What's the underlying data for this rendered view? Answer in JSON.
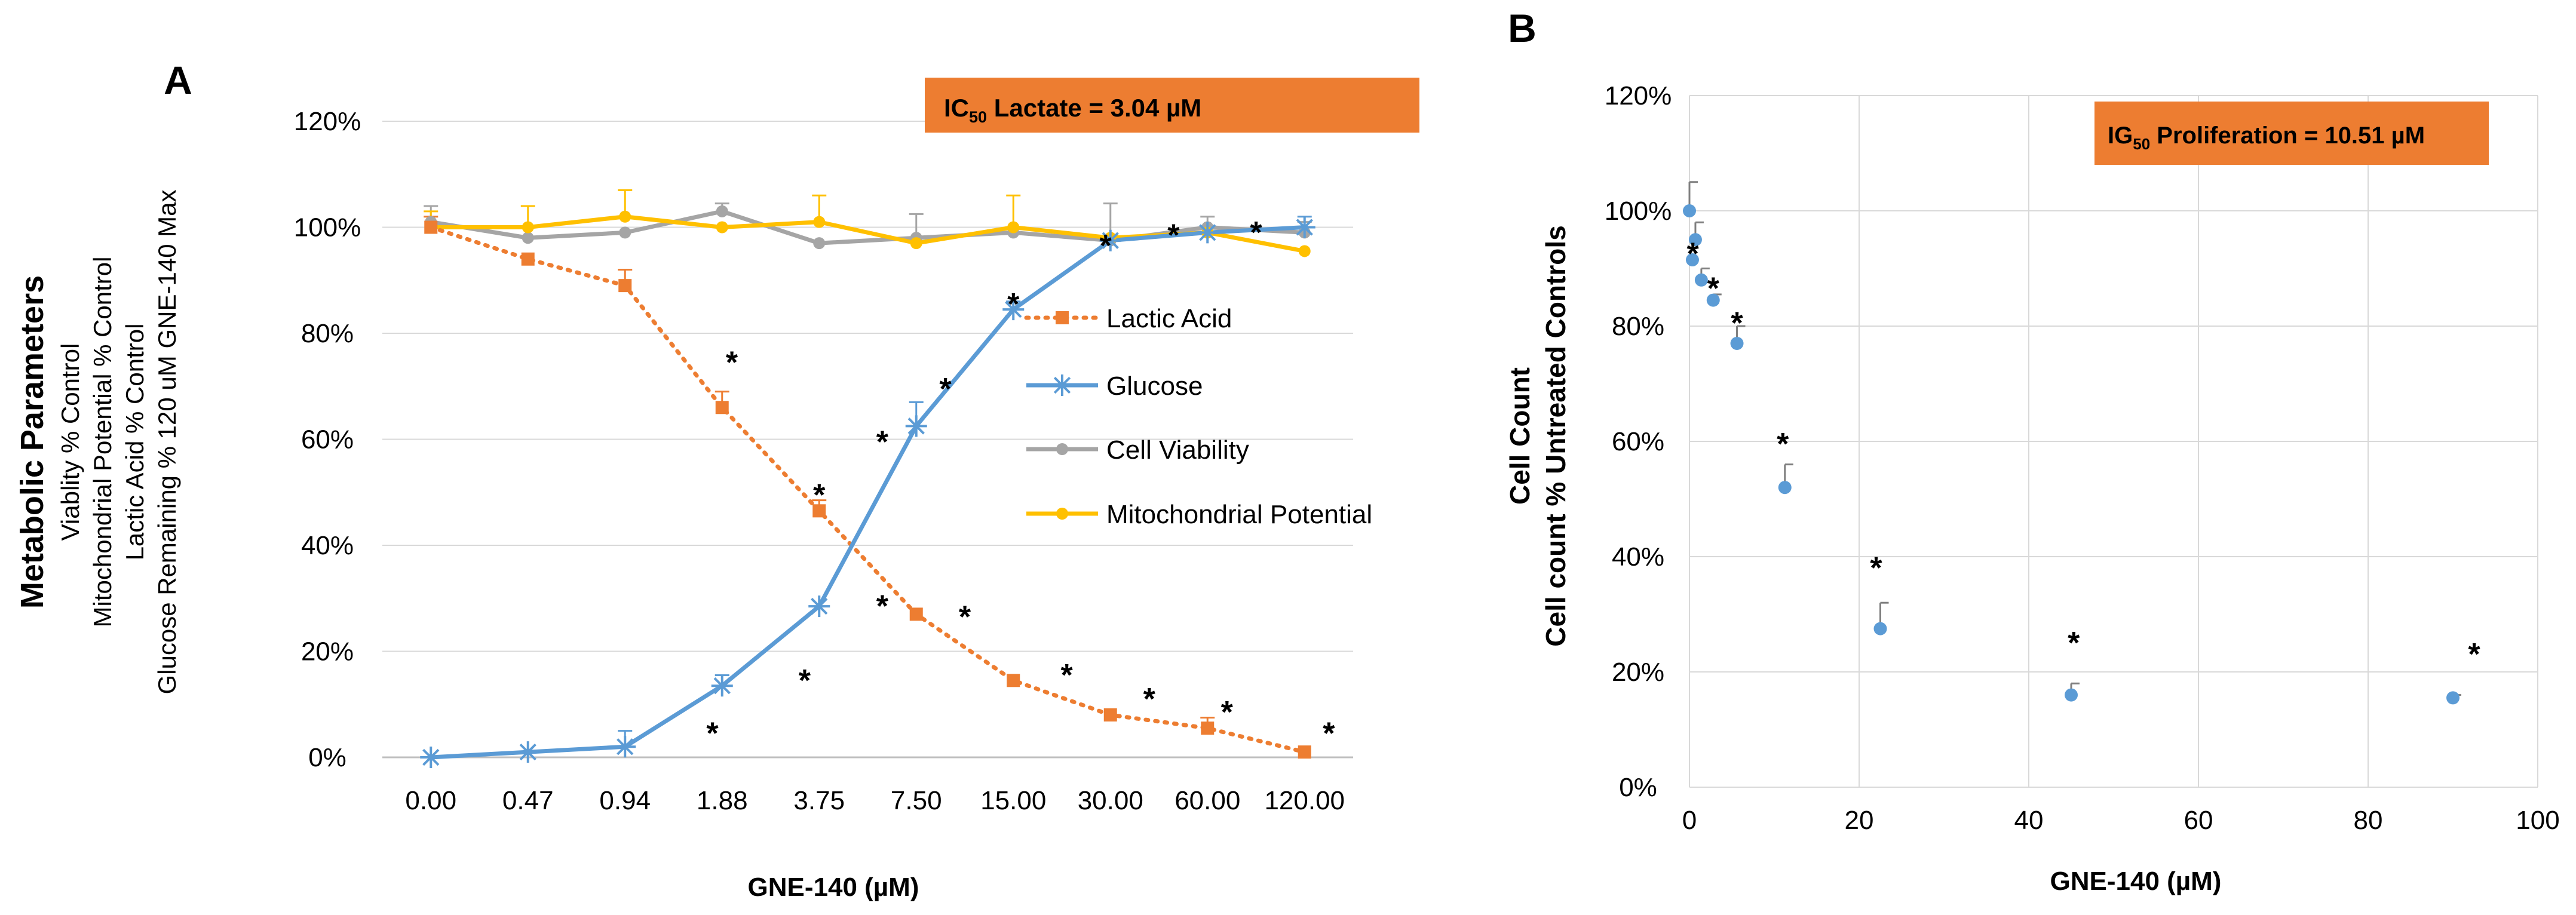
{
  "chart_data": [
    {
      "panel_label": "A",
      "type": "line",
      "title": "",
      "xlabel": "GNE-140 (µM)",
      "ylabel_main": "Metabolic Parameters",
      "ylabel_lines": [
        "Viablity % Control",
        "Mitochondrial Potential % Control",
        "Lactic Acid % Control",
        "Glucose Remaining % 120 uM GNE-140 Max"
      ],
      "categories": [
        "0.00",
        "0.47",
        "0.94",
        "1.88",
        "3.75",
        "7.50",
        "15.00",
        "30.00",
        "60.00",
        "120.00"
      ],
      "yticks": [
        "0%",
        "20%",
        "40%",
        "60%",
        "80%",
        "100%",
        "120%"
      ],
      "ylim": [
        0,
        120
      ],
      "ystep": 20,
      "grid": true,
      "ic50_box": {
        "label": "IC",
        "sub": "50",
        "rest": " Lactate  = 3.04 µM",
        "color": "#ED7D31"
      },
      "series": [
        {
          "name": "Lactic Acid",
          "color": "#ED7D31",
          "style": "dotted",
          "marker": "square",
          "values": [
            100,
            94,
            89,
            66,
            46.5,
            27,
            14.5,
            8,
            5.5,
            1
          ],
          "errors": [
            2,
            0,
            3,
            3,
            2,
            0,
            0,
            0,
            2,
            0
          ]
        },
        {
          "name": "Glucose",
          "color": "#5B9BD5",
          "style": "solid",
          "marker": "star",
          "values": [
            0,
            1,
            2,
            13.5,
            28.5,
            62.5,
            84.5,
            97.5,
            99,
            100
          ],
          "errors": [
            0,
            0,
            3,
            2,
            0,
            4.5,
            1.5,
            1,
            1,
            2
          ]
        },
        {
          "name": "Cell Viability",
          "color": "#A5A5A5",
          "style": "solid",
          "marker": "circle",
          "values": [
            101,
            98,
            99,
            103,
            97,
            98,
            99,
            97.5,
            100,
            99
          ],
          "errors": [
            3,
            0,
            0,
            1.5,
            0,
            4.5,
            0,
            7,
            2,
            2
          ]
        },
        {
          "name": "Mitochondrial Potential",
          "color": "#FFC000",
          "style": "solid",
          "marker": "circle",
          "values": [
            100,
            100,
            102,
            100,
            101,
            97,
            100,
            98,
            99,
            95.5
          ],
          "errors": [
            3,
            4,
            5,
            0,
            5,
            0,
            6,
            0,
            0,
            0
          ]
        }
      ],
      "asterisks": [
        {
          "x_index": 3.1,
          "y": 75,
          "text": "*"
        },
        {
          "x_index": 4.0,
          "y": 50,
          "text": "*"
        },
        {
          "x_index": 4.65,
          "y": 60,
          "text": "*"
        },
        {
          "x_index": 5.3,
          "y": 70,
          "text": "*"
        },
        {
          "x_index": 6.0,
          "y": 86,
          "text": "*"
        },
        {
          "x_index": 6.95,
          "y": 97,
          "text": "*"
        },
        {
          "x_index": 7.65,
          "y": 99,
          "text": "*"
        },
        {
          "x_index": 8.5,
          "y": 99.5,
          "text": "*"
        },
        {
          "x_index": 4.65,
          "y": 29,
          "text": "*"
        },
        {
          "x_index": 5.5,
          "y": 27,
          "text": "*"
        },
        {
          "x_index": 6.55,
          "y": 16,
          "text": "*"
        },
        {
          "x_index": 7.4,
          "y": 11.5,
          "text": "*"
        },
        {
          "x_index": 8.2,
          "y": 9,
          "text": "*"
        },
        {
          "x_index": 9.25,
          "y": 5,
          "text": "*"
        },
        {
          "x_index": 2.9,
          "y": 5,
          "text": "*"
        },
        {
          "x_index": 3.85,
          "y": 15,
          "text": "*"
        }
      ]
    },
    {
      "panel_label": "B",
      "type": "scatter",
      "title": "",
      "xlabel": "GNE-140 (µM)",
      "ylabel_lines": [
        "Cell Count",
        "Cell count % Untreated Controls"
      ],
      "xticks": [
        "0",
        "20",
        "40",
        "60",
        "80",
        "100"
      ],
      "xlim": [
        0,
        100
      ],
      "xstep": 20,
      "yticks": [
        "0%",
        "20%",
        "40%",
        "60%",
        "80%",
        "100%",
        "120%"
      ],
      "ylim": [
        0,
        120
      ],
      "ystep": 20,
      "grid": true,
      "ig50_box": {
        "label": "IG",
        "sub": "50",
        "rest": " Proliferation  = 10.51 µM",
        "color": "#ED7D31"
      },
      "series": [
        {
          "name": "Cell Count",
          "color": "#5B9BD5",
          "marker": "circle",
          "x": [
            0,
            0.35,
            0.7,
            1.4,
            2.8,
            5.6,
            11.25,
            22.5,
            45,
            90
          ],
          "y": [
            100,
            91.5,
            95,
            88,
            84.5,
            77,
            52,
            27.5,
            16,
            15.5
          ],
          "errors": [
            5,
            0,
            3,
            2,
            1,
            3,
            4,
            4.5,
            2,
            0.5
          ]
        }
      ],
      "asterisks": [
        {
          "x": 0.4,
          "y": 93,
          "text": "*"
        },
        {
          "x": 2.8,
          "y": 87,
          "text": "*"
        },
        {
          "x": 5.6,
          "y": 81,
          "text": "*"
        },
        {
          "x": 11,
          "y": 60,
          "text": "*"
        },
        {
          "x": 22,
          "y": 38.5,
          "text": "*"
        },
        {
          "x": 45.3,
          "y": 25.5,
          "text": "*"
        },
        {
          "x": 92.5,
          "y": 23.5,
          "text": "*"
        }
      ]
    }
  ]
}
